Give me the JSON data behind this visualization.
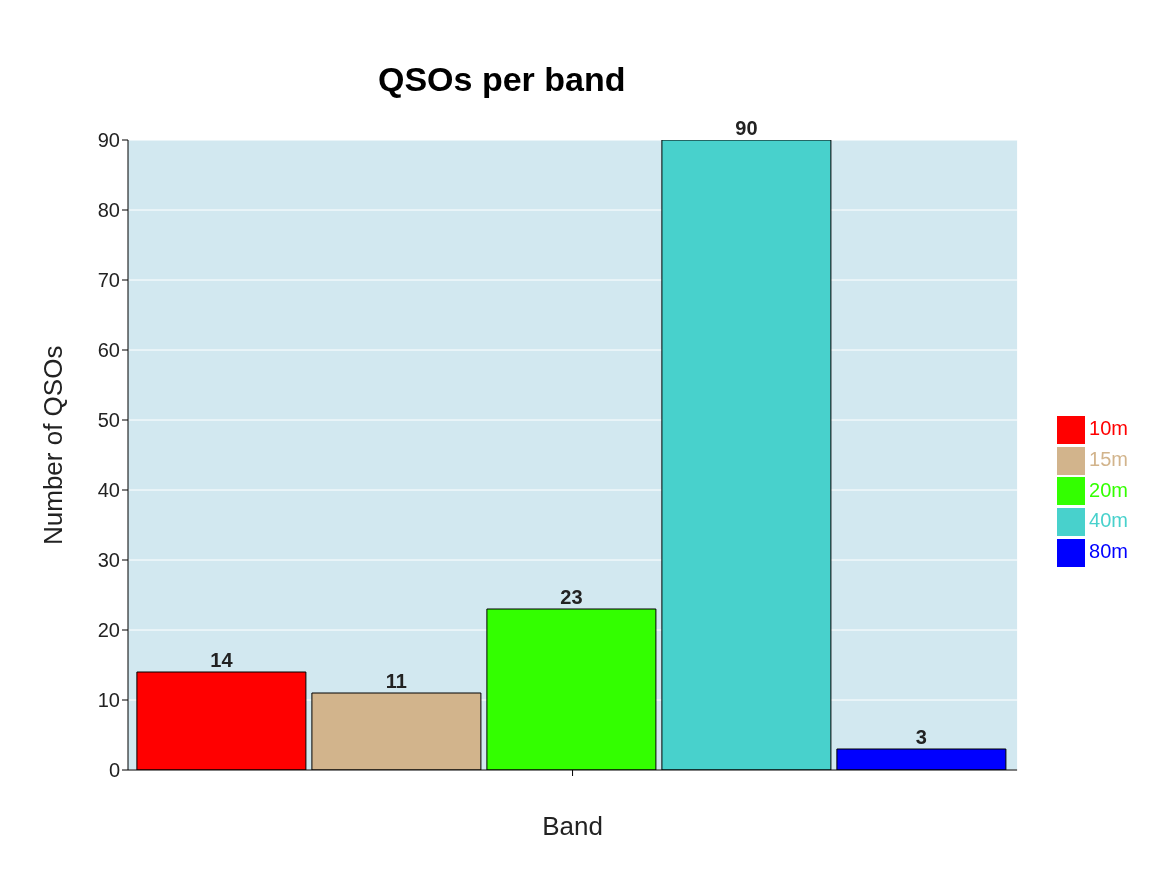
{
  "chart_data": {
    "type": "bar",
    "title": "QSOs per band",
    "xlabel": "Band",
    "ylabel": "Number of QSOs",
    "categories": [
      null
    ],
    "series": [
      {
        "name": "10m",
        "color": "#ff0000",
        "values": [
          14
        ]
      },
      {
        "name": "15m",
        "color": "#d2b48c",
        "values": [
          11
        ]
      },
      {
        "name": "20m",
        "color": "#33ff00",
        "values": [
          23
        ]
      },
      {
        "name": "40m",
        "color": "#48d1cc",
        "values": [
          90
        ]
      },
      {
        "name": "80m",
        "color": "#0000ff",
        "values": [
          3
        ]
      }
    ],
    "ylim": [
      0,
      90
    ],
    "yticks": [
      0,
      10,
      20,
      30,
      40,
      50,
      60,
      70,
      80,
      90
    ],
    "grid": "y",
    "legend": "right",
    "data_labels": true
  }
}
